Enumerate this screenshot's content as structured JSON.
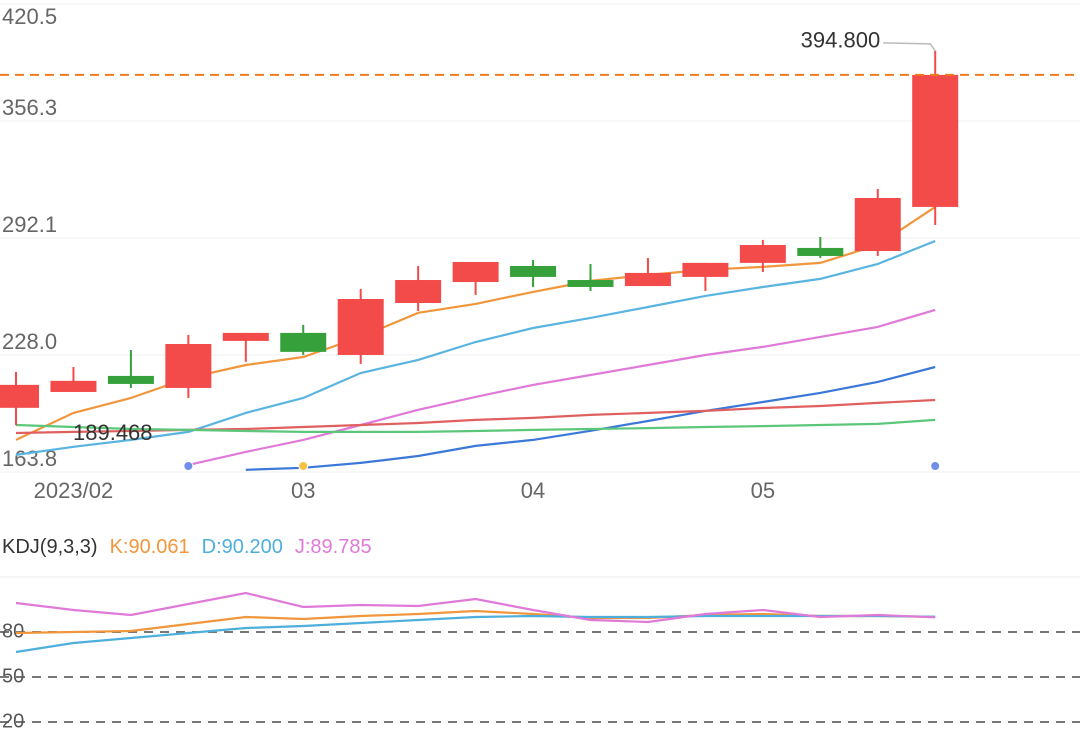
{
  "chart_data": [
    {
      "type": "candlestick",
      "categories": [
        null,
        "2023/02",
        null,
        null,
        null,
        "03",
        null,
        null,
        null,
        "04",
        null,
        null,
        null,
        "05",
        null,
        null,
        null
      ],
      "open": [
        199.0,
        207.7,
        216.5,
        209.9,
        235.7,
        240.1,
        228.0,
        256.5,
        268.0,
        276.8,
        269.1,
        265.8,
        270.8,
        278.5,
        286.7,
        285.0,
        309.2
      ],
      "high": [
        218.7,
        221.4,
        230.7,
        239.0,
        240.1,
        244.5,
        264.2,
        276.8,
        279.0,
        280.1,
        277.9,
        281.2,
        278.5,
        291.1,
        292.7,
        319.0,
        394.8
      ],
      "low": [
        189.468,
        207.7,
        209.9,
        204.4,
        224.2,
        228.0,
        223.1,
        252.1,
        260.9,
        265.3,
        263.1,
        265.8,
        263.1,
        273.5,
        281.2,
        282.3,
        299.3
      ],
      "close": [
        211.6,
        213.8,
        212.1,
        234.0,
        240.1,
        229.7,
        258.7,
        269.1,
        279.0,
        270.8,
        265.3,
        273.0,
        278.5,
        288.3,
        282.3,
        314.1,
        381.6
      ],
      "up_color": "#f34a4a",
      "down_color": "#36a13a",
      "ylim": [
        163.8,
        420.5
      ],
      "yticks": [
        163.8,
        {
          "value": 228.0,
          "label": "228.0"
        },
        292.1,
        356.3,
        420.5
      ],
      "grid": true,
      "series": [
        {
          "color": "#f0963c",
          "values": [
            181.4,
            196.2,
            204.4,
            215.4,
            222.5,
            226.9,
            237.9,
            251.1,
            256.0,
            262.6,
            268.6,
            271.9,
            274.7,
            276.3,
            278.5,
            288.3,
            309.2
          ]
        },
        {
          "color": "#5ab4e0",
          "values": [
            173.2,
            177.6,
            181.4,
            185.8,
            196.2,
            204.4,
            218.1,
            225.3,
            235.1,
            242.8,
            248.3,
            254.3,
            260.4,
            265.3,
            269.7,
            277.9,
            290.5
          ]
        },
        {
          "color": "#e07ad8",
          "values": [
            null,
            null,
            null,
            167.7,
            174.8,
            181.4,
            189.6,
            197.9,
            205.0,
            211.6,
            217.0,
            222.5,
            228.0,
            232.4,
            237.9,
            243.4,
            252.7
          ]
        },
        {
          "color": "#3c78d8",
          "values": [
            null,
            null,
            null,
            null,
            165.0,
            166.1,
            168.8,
            172.6,
            178.1,
            181.4,
            186.4,
            191.8,
            197.3,
            202.2,
            207.2,
            213.2,
            221.4
          ]
        },
        {
          "color": "#e06060",
          "values": [
            185.2,
            185.8,
            186.3,
            186.9,
            187.4,
            188.5,
            189.6,
            190.7,
            192.4,
            193.5,
            195.1,
            196.2,
            197.3,
            198.9,
            200.0,
            201.7,
            203.3
          ]
        },
        {
          "color": "#5cc77a",
          "values": [
            189.6,
            188.5,
            187.4,
            186.9,
            186.3,
            185.8,
            185.8,
            185.8,
            186.3,
            186.9,
            187.4,
            187.9,
            188.5,
            189.0,
            189.6,
            190.2,
            192.4
          ]
        }
      ],
      "last_price": 381.6,
      "last_price_color": "#f07b1e",
      "max_label": "394.800",
      "events": [
        {
          "index": 3,
          "color": "#6f8fe8"
        },
        {
          "index": 5,
          "color": "#f5c242"
        },
        {
          "index": 16,
          "color": "#6f8fe8"
        }
      ]
    },
    {
      "type": "line",
      "title": "KDJ(9,3,3)",
      "ylim": [
        6,
        116
      ],
      "yticks": [
        80,
        50,
        20
      ],
      "series": [
        {
          "name": "K:90.061",
          "color": "#f0963c",
          "values": [
            79.3,
            80.0,
            80.7,
            85.3,
            90.0,
            88.7,
            90.7,
            92.0,
            94.0,
            92.0,
            89.3,
            89.3,
            91.3,
            92.0,
            90.7,
            90.7,
            90.061
          ]
        },
        {
          "name": "D:90.200",
          "color": "#4eaedc",
          "values": [
            66.7,
            72.7,
            76.0,
            79.3,
            82.7,
            84.0,
            86.0,
            88.0,
            90.0,
            90.7,
            90.0,
            90.0,
            90.7,
            90.7,
            90.7,
            90.7,
            90.2
          ]
        },
        {
          "name": "J:89.785",
          "color": "#e07ad8",
          "values": [
            99.3,
            94.7,
            91.3,
            98.7,
            106.0,
            96.7,
            98.0,
            97.3,
            102.0,
            94.7,
            88.0,
            86.7,
            92.0,
            94.7,
            90.0,
            91.3,
            89.785
          ]
        }
      ]
    }
  ]
}
